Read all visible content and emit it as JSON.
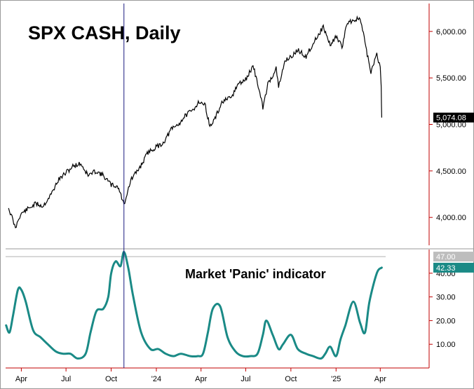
{
  "chart_data": [
    {
      "type": "line",
      "title": "SPX CASH, Daily",
      "ylim": [
        3700,
        6300
      ],
      "yticks": [
        {
          "value": 4000,
          "label": "4,000.00"
        },
        {
          "value": 4500,
          "label": "4,500.00"
        },
        {
          "value": 5000,
          "label": "5,000.00"
        },
        {
          "value": 5500,
          "label": "5,500.00"
        },
        {
          "value": 6000,
          "label": "6,000.00"
        }
      ],
      "last_value_label": "5,074.08",
      "last_value": 5074,
      "series": [
        {
          "x": [
            "2023-03-06",
            "2023-03-13",
            "2023-03-20",
            "2023-03-27",
            "2023-04-03",
            "2023-04-17",
            "2023-05-01",
            "2023-05-15",
            "2023-06-01",
            "2023-06-15",
            "2023-07-01",
            "2023-07-15",
            "2023-07-31",
            "2023-08-15",
            "2023-08-31",
            "2023-09-15",
            "2023-10-01",
            "2023-10-15",
            "2023-10-27",
            "2023-11-10",
            "2023-11-30",
            "2023-12-15",
            "2024-01-02",
            "2024-01-15",
            "2024-02-01",
            "2024-02-15",
            "2024-03-01",
            "2024-03-15",
            "2024-03-28",
            "2024-04-10",
            "2024-04-19",
            "2024-05-01",
            "2024-05-15",
            "2024-06-01",
            "2024-06-15",
            "2024-07-01",
            "2024-07-16",
            "2024-07-25",
            "2024-08-05",
            "2024-08-15",
            "2024-09-01",
            "2024-09-06",
            "2024-09-20",
            "2024-10-01",
            "2024-10-15",
            "2024-11-01",
            "2024-11-15",
            "2024-12-06",
            "2024-12-20",
            "2025-01-01",
            "2025-01-13",
            "2025-01-24",
            "2025-02-19",
            "2025-03-01",
            "2025-03-13",
            "2025-03-25",
            "2025-04-01",
            "2025-04-03",
            "2025-04-04"
          ],
          "values": [
            4100,
            4000,
            3880,
            4000,
            4050,
            4100,
            4150,
            4120,
            4250,
            4400,
            4480,
            4550,
            4580,
            4450,
            4500,
            4450,
            4350,
            4330,
            4140,
            4400,
            4550,
            4700,
            4760,
            4800,
            4950,
            5000,
            5100,
            5150,
            5250,
            5200,
            4970,
            5080,
            5250,
            5280,
            5430,
            5480,
            5630,
            5450,
            5180,
            5430,
            5600,
            5400,
            5700,
            5720,
            5800,
            5730,
            5870,
            6050,
            5850,
            5950,
            5830,
            6100,
            6140,
            5880,
            5550,
            5770,
            5600,
            5400,
            5074
          ]
        }
      ]
    },
    {
      "type": "line",
      "title": "Market 'Panic' indicator",
      "ylim": [
        0,
        50
      ],
      "yticks": [
        {
          "value": 10,
          "label": "10.00"
        },
        {
          "value": 20,
          "label": "20.00"
        },
        {
          "value": 30,
          "label": "30.00"
        },
        {
          "value": 40,
          "label": "40.00"
        }
      ],
      "reference_value": 47,
      "reference_label": "47.00",
      "last_value": 42.33,
      "last_value_label": "42.33",
      "series": [
        {
          "x": [
            "2023-03-01",
            "2023-03-08",
            "2023-03-15",
            "2023-03-25",
            "2023-04-01",
            "2023-04-10",
            "2023-04-25",
            "2023-05-10",
            "2023-05-25",
            "2023-06-10",
            "2023-06-25",
            "2023-07-10",
            "2023-07-25",
            "2023-08-10",
            "2023-08-20",
            "2023-09-01",
            "2023-09-15",
            "2023-09-25",
            "2023-10-01",
            "2023-10-10",
            "2023-10-20",
            "2023-10-27",
            "2023-11-05",
            "2023-11-15",
            "2023-12-01",
            "2023-12-20",
            "2024-01-05",
            "2024-01-20",
            "2024-02-05",
            "2024-02-20",
            "2024-03-10",
            "2024-03-25",
            "2024-04-05",
            "2024-04-15",
            "2024-04-25",
            "2024-05-10",
            "2024-05-25",
            "2024-06-10",
            "2024-06-25",
            "2024-07-10",
            "2024-07-25",
            "2024-08-05",
            "2024-08-12",
            "2024-08-25",
            "2024-09-06",
            "2024-09-15",
            "2024-10-01",
            "2024-10-15",
            "2024-11-01",
            "2024-11-15",
            "2024-12-01",
            "2024-12-10",
            "2024-12-20",
            "2025-01-01",
            "2025-01-10",
            "2025-01-20",
            "2025-02-05",
            "2025-02-19",
            "2025-03-01",
            "2025-03-10",
            "2025-03-25",
            "2025-04-04"
          ],
          "values": [
            18,
            15,
            22,
            33,
            33,
            28,
            16,
            13,
            10,
            7,
            6,
            6,
            4,
            6,
            15,
            24,
            25,
            30,
            40,
            45,
            43,
            49,
            42,
            30,
            15,
            8,
            8,
            6,
            5,
            6,
            5,
            5,
            6,
            15,
            25,
            26,
            13,
            7,
            5,
            5,
            6,
            14,
            20,
            14,
            8,
            10,
            14,
            8,
            6,
            5,
            4,
            6,
            9,
            5,
            12,
            18,
            28,
            19,
            15,
            28,
            40,
            42.33
          ]
        }
      ]
    }
  ],
  "x_axis": {
    "ticks": [
      {
        "date": "2023-04-01",
        "label": "Apr"
      },
      {
        "date": "2023-07-01",
        "label": "Jul"
      },
      {
        "date": "2023-10-01",
        "label": "Oct"
      },
      {
        "date": "2024-01-01",
        "label": "'24"
      },
      {
        "date": "2024-04-01",
        "label": "Apr"
      },
      {
        "date": "2024-07-01",
        "label": "Jul"
      },
      {
        "date": "2024-10-01",
        "label": "Oct"
      },
      {
        "date": "2025-01-01",
        "label": "'25"
      },
      {
        "date": "2025-04-01",
        "label": "Apr"
      }
    ],
    "range": [
      "2023-02-28",
      "2025-04-12"
    ]
  },
  "marker_date": "2023-10-27",
  "colors": {
    "price_line": "#000000",
    "indicator_line": "#1a8a86",
    "marker_line": "#1a1a80",
    "axis_line": "#c00000",
    "badge_bg": "#000000",
    "indicator_badge_bg": "#1a8a86",
    "reference_badge_bg": "#bdbdbd"
  }
}
